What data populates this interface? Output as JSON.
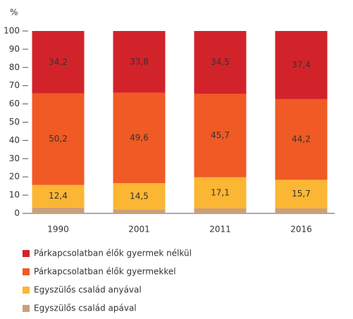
{
  "chart_data": {
    "type": "stacked-bar",
    "ylabel": "%",
    "categories": [
      "1990",
      "2001",
      "2011",
      "2016"
    ],
    "series": [
      {
        "name": "Egyszülős család apával",
        "color": "#c9a07c",
        "values": [
          3.2,
          2.1,
          2.7,
          2.7
        ]
      },
      {
        "name": "Egyszülős család anyával",
        "color": "#fbb634",
        "values": [
          12.4,
          14.5,
          17.1,
          15.7
        ],
        "value_labels": [
          "12,4",
          "14,5",
          "17,1",
          "15,7"
        ]
      },
      {
        "name": "Párkapcsolatban élők gyermekkel",
        "color": "#f05a24",
        "values": [
          50.2,
          49.6,
          45.7,
          44.2
        ],
        "value_labels": [
          "50,2",
          "49,6",
          "45,7",
          "44,2"
        ]
      },
      {
        "name": "Párkapcsolatban élők gyermek nélkül",
        "color": "#d2232a",
        "values": [
          34.2,
          33.8,
          34.5,
          37.4
        ],
        "value_labels": [
          "34,2",
          "33,8",
          "34,5",
          "37,4"
        ]
      }
    ],
    "ylim": [
      0,
      100
    ],
    "yticks": [
      0,
      10,
      20,
      30,
      40,
      50,
      60,
      70,
      80,
      90,
      100
    ]
  }
}
